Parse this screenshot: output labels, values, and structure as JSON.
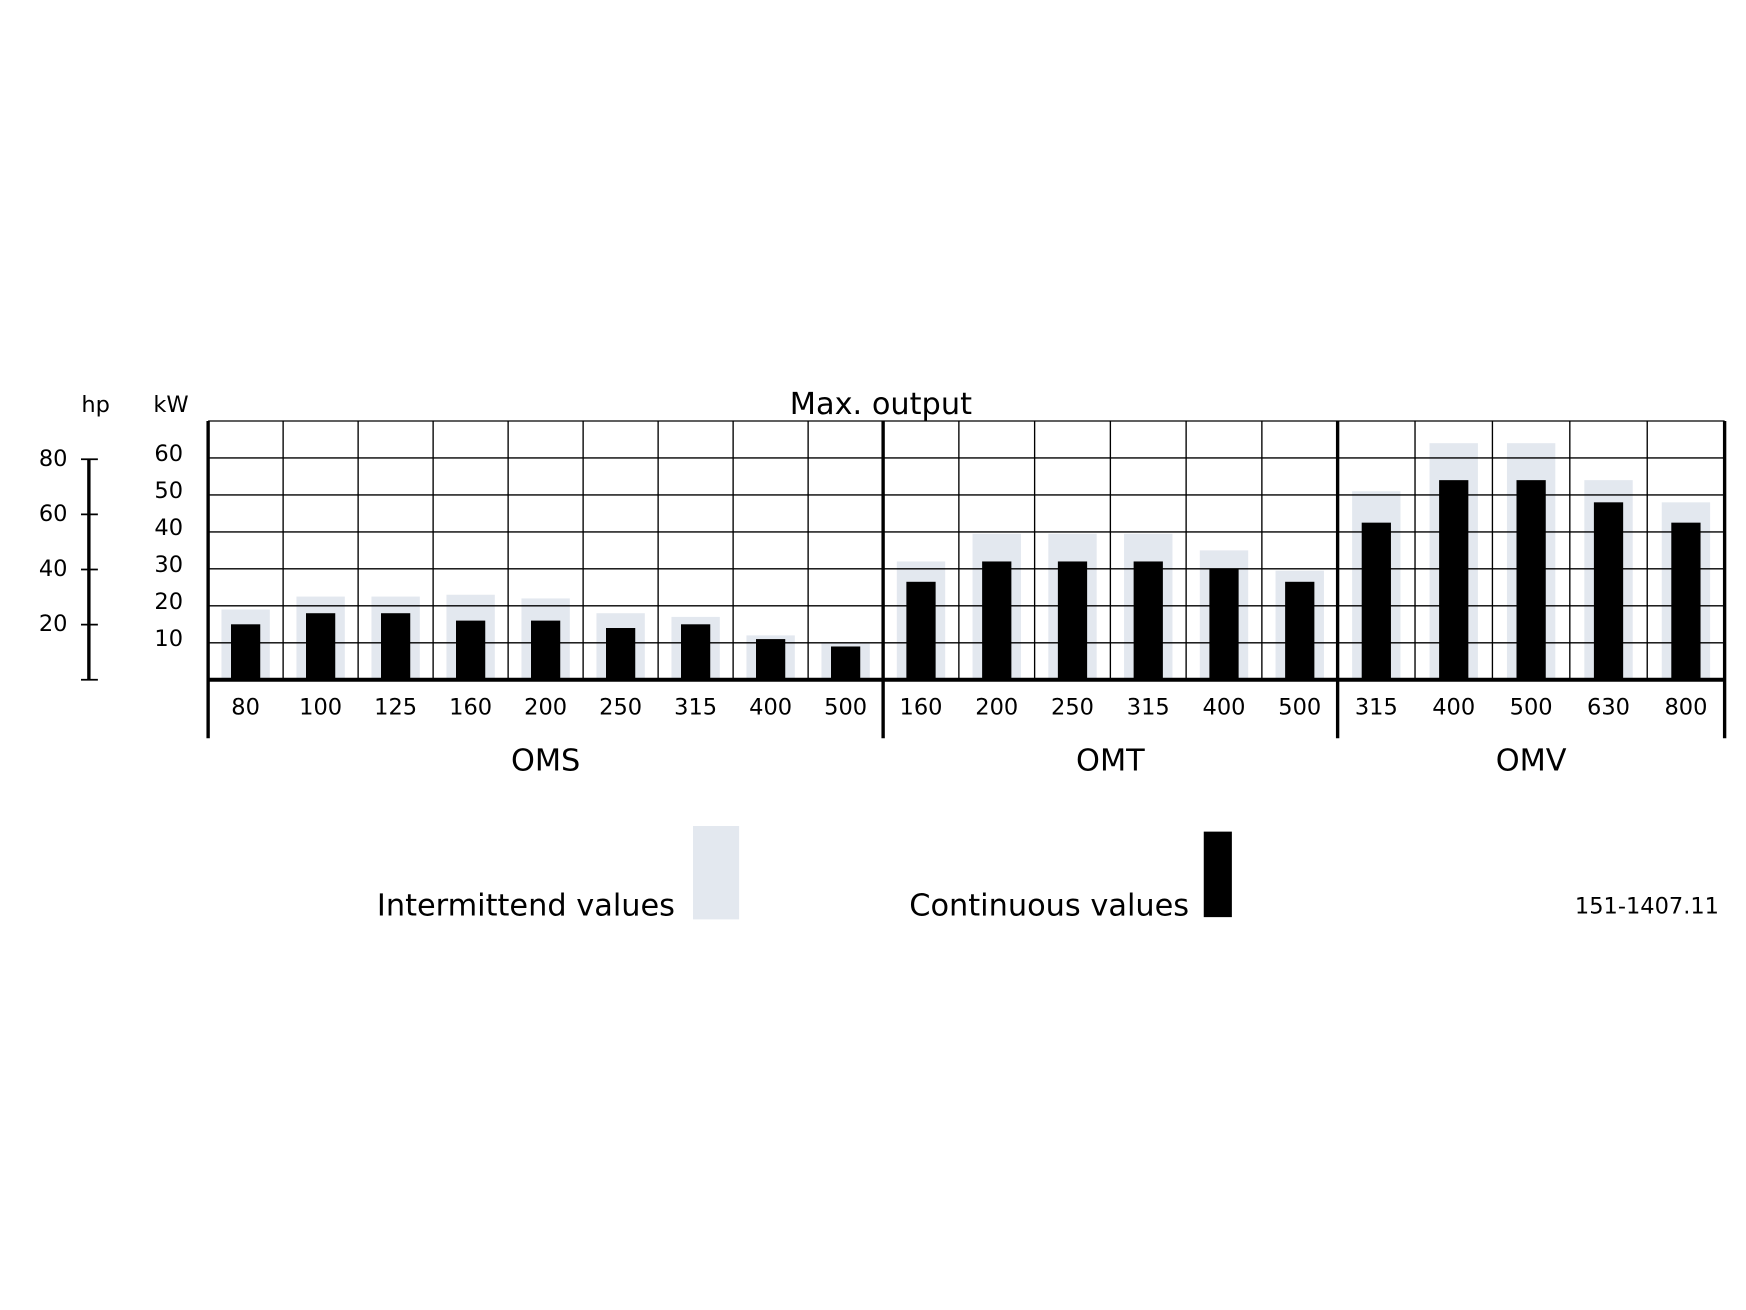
{
  "chart_data": {
    "type": "grouped-bar",
    "title": "Max. output",
    "ylabel": "kW",
    "y2label": "hp",
    "ylim": [
      0,
      70
    ],
    "yticks": [
      10,
      20,
      30,
      40,
      50,
      60
    ],
    "y2lim": [
      0,
      80
    ],
    "y2ticks": [
      20,
      40,
      60,
      80
    ],
    "grid": true,
    "groups": [
      {
        "name": "OMS",
        "categories": [
          "80",
          "100",
          "125",
          "160",
          "200",
          "250",
          "315",
          "400",
          "500"
        ]
      },
      {
        "name": "OMT",
        "categories": [
          "160",
          "200",
          "250",
          "315",
          "400",
          "500"
        ]
      },
      {
        "name": "OMV",
        "categories": [
          "315",
          "400",
          "500",
          "630",
          "800"
        ]
      }
    ],
    "series": [
      {
        "name": "Intermittend values",
        "color": "#e3e8ef",
        "values": [
          [
            19,
            22.5,
            22.5,
            23,
            22,
            18,
            17,
            12,
            10
          ],
          [
            32,
            39.5,
            39.5,
            39.5,
            35,
            29.5
          ],
          [
            51,
            64,
            64,
            54,
            48
          ]
        ]
      },
      {
        "name": "Continuous values",
        "color": "#000000",
        "values": [
          [
            15,
            18,
            18,
            16,
            16,
            14,
            15,
            11,
            9
          ],
          [
            26.5,
            32,
            32,
            32,
            30,
            26.5
          ],
          [
            42.5,
            54,
            54,
            48,
            42.5
          ]
        ]
      }
    ],
    "code": "151-1407.11"
  }
}
